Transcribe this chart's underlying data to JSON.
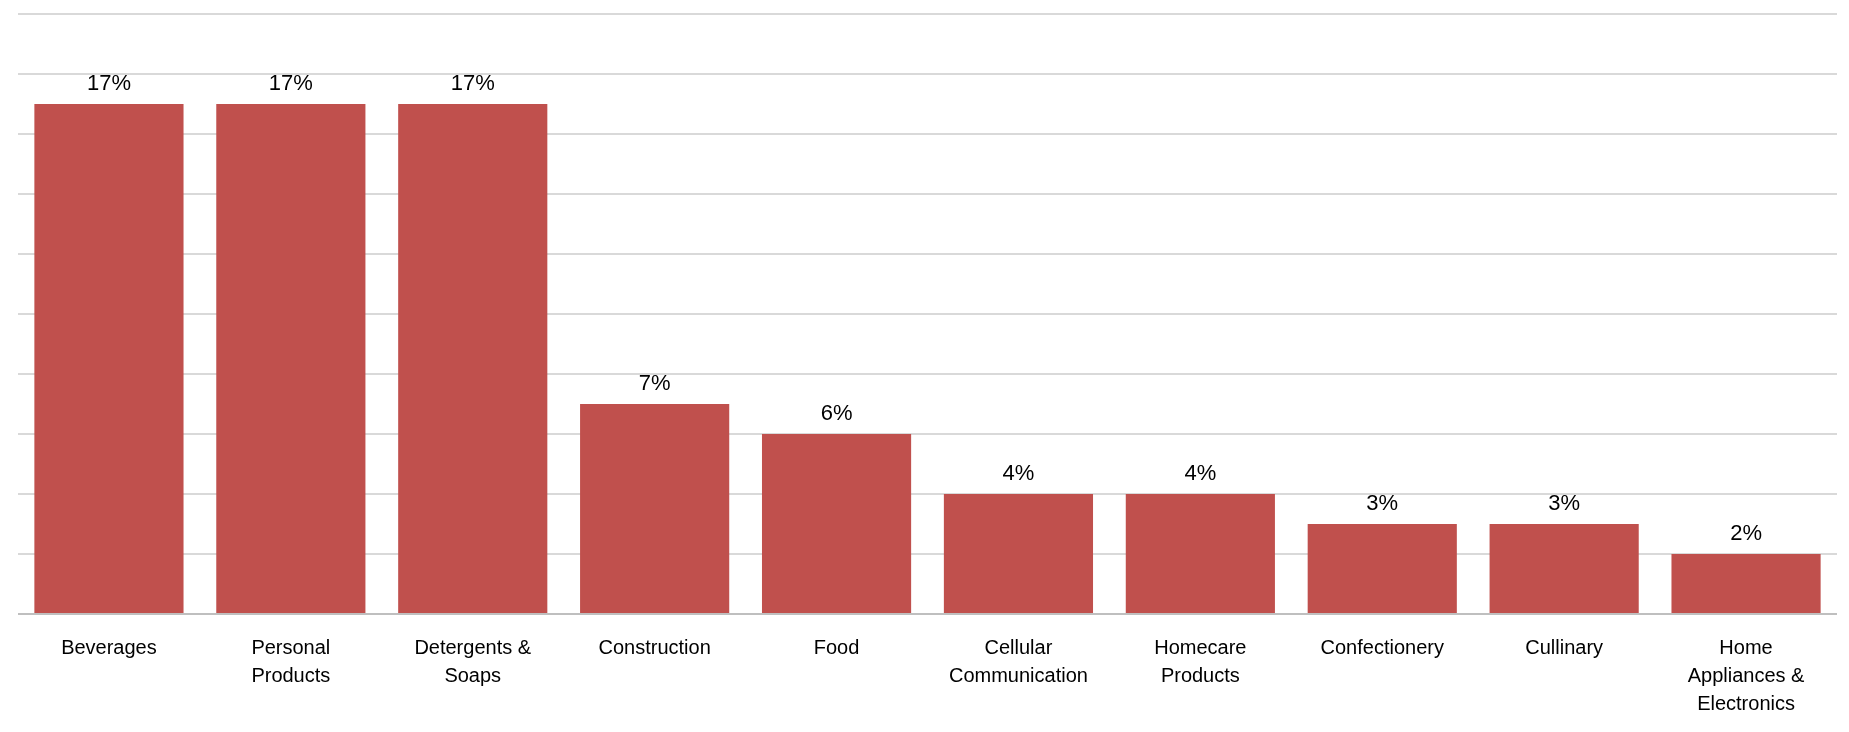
{
  "chart_data": {
    "type": "bar",
    "categories": [
      "Beverages",
      "Personal Products",
      "Detergents & Soaps",
      "Construction",
      "Food",
      "Cellular Communication",
      "Homecare Products",
      "Confectionery",
      "Cullinary",
      "Home Appliances & Electronics"
    ],
    "values": [
      17,
      17,
      17,
      7,
      6,
      4,
      4,
      3,
      3,
      2
    ],
    "value_labels": [
      "17%",
      "17%",
      "17%",
      "7%",
      "6%",
      "4%",
      "4%",
      "3%",
      "3%",
      "2%"
    ],
    "color": "#c0504d",
    "ylim": [
      0,
      20
    ],
    "yticks": [
      {
        "value": 0,
        "label": null
      },
      {
        "value": 2,
        "label": null
      },
      {
        "value": 4,
        "label": null
      },
      {
        "value": 6,
        "label": null
      },
      {
        "value": 8,
        "label": null
      },
      {
        "value": 10,
        "label": null
      },
      {
        "value": 12,
        "label": null
      },
      {
        "value": 14,
        "label": null
      },
      {
        "value": 16,
        "label": null
      },
      {
        "value": 18,
        "label": null
      },
      {
        "value": 20,
        "label": null
      }
    ],
    "grid": "y",
    "tick_labels": "x"
  }
}
